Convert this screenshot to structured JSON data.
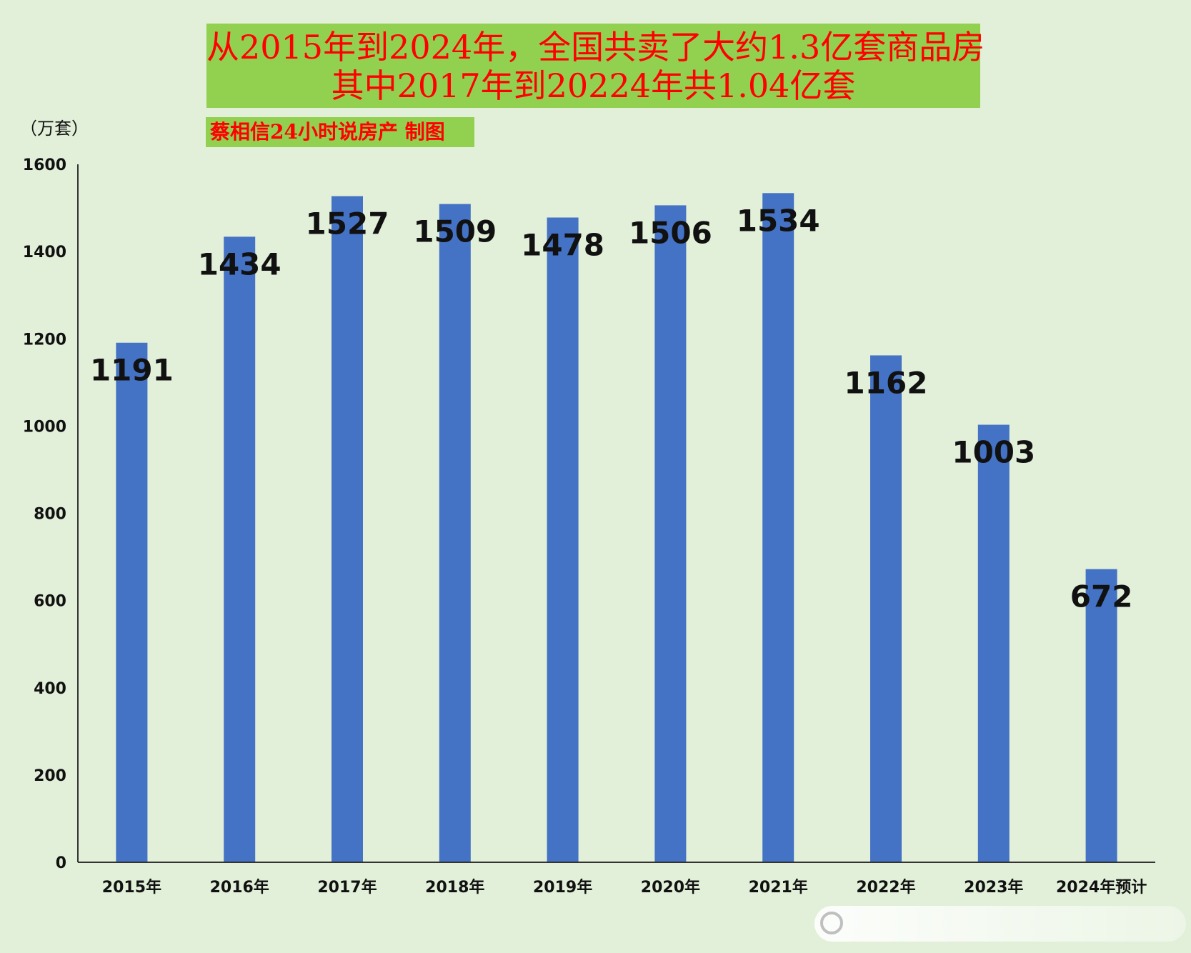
{
  "title": {
    "line1": "从2015年到2024年，全国共卖了大约1.3亿套商品房",
    "line2": "其中2017年到20224年共1.04亿套"
  },
  "credit": "蔡相信24小时说房产  制图",
  "unit": "（万套）",
  "colors": {
    "bar": "#4472c4",
    "background": "#e2f0d9",
    "title_box": "#92d050",
    "title_text": "#ff0000"
  },
  "chart_data": {
    "type": "bar",
    "title": "从2015年到2024年，全国共卖了大约1.3亿套商品房",
    "ylabel": "（万套）",
    "categories": [
      "2015年",
      "2016年",
      "2017年",
      "2018年",
      "2019年",
      "2020年",
      "2021年",
      "2022年",
      "2023年",
      "2024年预计"
    ],
    "values": [
      1191,
      1434,
      1527,
      1509,
      1478,
      1506,
      1534,
      1162,
      1003,
      672
    ],
    "labels": [
      "1191",
      "1434",
      "1527",
      "1509",
      "1478",
      "1506",
      "1534",
      "1162",
      "1003",
      "672"
    ],
    "ylim": [
      0,
      1600
    ],
    "yticks": [
      0,
      200,
      400,
      600,
      800,
      1000,
      1200,
      1400,
      1600
    ],
    "ytick_labels": [
      "0",
      "200",
      "400",
      "600",
      "800",
      "1000",
      "1200",
      "1400",
      "1600"
    ],
    "grid": false,
    "legend": "none"
  }
}
